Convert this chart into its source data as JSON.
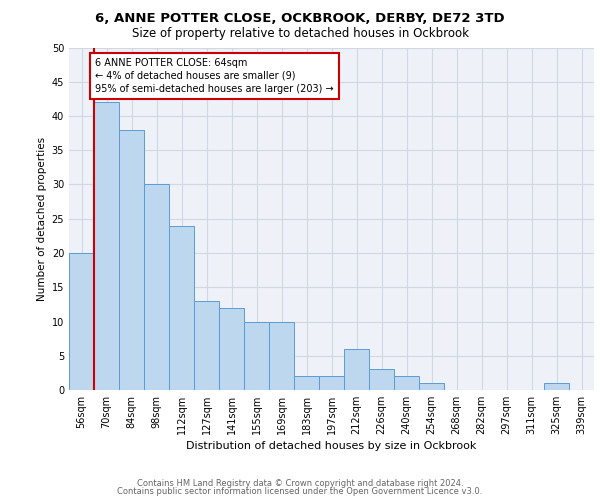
{
  "title1": "6, ANNE POTTER CLOSE, OCKBROOK, DERBY, DE72 3TD",
  "title2": "Size of property relative to detached houses in Ockbrook",
  "xlabel": "Distribution of detached houses by size in Ockbrook",
  "ylabel": "Number of detached properties",
  "categories": [
    "56sqm",
    "70sqm",
    "84sqm",
    "98sqm",
    "112sqm",
    "127sqm",
    "141sqm",
    "155sqm",
    "169sqm",
    "183sqm",
    "197sqm",
    "212sqm",
    "226sqm",
    "240sqm",
    "254sqm",
    "268sqm",
    "282sqm",
    "297sqm",
    "311sqm",
    "325sqm",
    "339sqm"
  ],
  "values": [
    20,
    42,
    38,
    30,
    24,
    13,
    12,
    10,
    10,
    2,
    2,
    6,
    3,
    2,
    1,
    0,
    0,
    0,
    0,
    1,
    0
  ],
  "bar_color": "#bdd7ee",
  "bar_edge_color": "#5b9bd5",
  "annotation_line1": "6 ANNE POTTER CLOSE: 64sqm",
  "annotation_line2": "← 4% of detached houses are smaller (9)",
  "annotation_line3": "95% of semi-detached houses are larger (203) →",
  "annotation_box_color": "#ffffff",
  "annotation_box_edge_color": "#cc0000",
  "property_line_color": "#cc0000",
  "ylim": [
    0,
    50
  ],
  "yticks": [
    0,
    5,
    10,
    15,
    20,
    25,
    30,
    35,
    40,
    45,
    50
  ],
  "footer_line1": "Contains HM Land Registry data © Crown copyright and database right 2024.",
  "footer_line2": "Contains public sector information licensed under the Open Government Licence v3.0.",
  "grid_color": "#d0d8e4",
  "bg_color": "#eef2f8",
  "title1_fontsize": 9.5,
  "title2_fontsize": 8.5,
  "ylabel_fontsize": 7.5,
  "xlabel_fontsize": 8,
  "tick_fontsize": 7,
  "footer_fontsize": 6,
  "annot_fontsize": 7
}
